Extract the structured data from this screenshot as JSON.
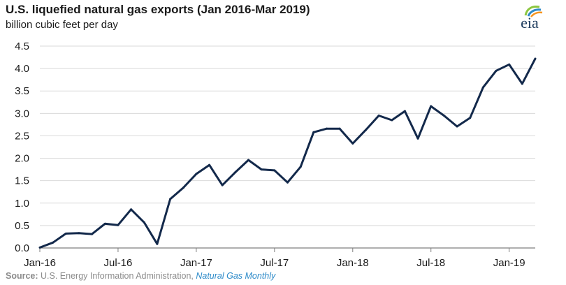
{
  "title": "U.S. liquefied natural gas exports (Jan 2016-Mar 2019)",
  "subtitle": "billion cubic feet per day",
  "logo_text": "eia",
  "source": {
    "label": "Source:",
    "text": " U.S. Energy Information Administration, ",
    "link_text": "Natural Gas Monthly"
  },
  "colors": {
    "line": "#13294b",
    "grid": "#d9d9d9",
    "axis": "#7f7f7f",
    "accent": "#2e8bc9"
  },
  "chart_data": {
    "type": "line",
    "ylim": [
      0,
      4.5
    ],
    "yticks": [
      "0.0",
      "0.5",
      "1.0",
      "1.5",
      "2.0",
      "2.5",
      "3.0",
      "3.5",
      "4.0",
      "4.5"
    ],
    "xticks": [
      {
        "label": "Jan-16",
        "index": 0
      },
      {
        "label": "Jul-16",
        "index": 6
      },
      {
        "label": "Jan-17",
        "index": 12
      },
      {
        "label": "Jul-17",
        "index": 18
      },
      {
        "label": "Jan-18",
        "index": 24
      },
      {
        "label": "Jul-18",
        "index": 30
      },
      {
        "label": "Jan-19",
        "index": 36
      }
    ],
    "grid": true,
    "series": [
      {
        "x": [
          "2016-01",
          "2016-02",
          "2016-03",
          "2016-04",
          "2016-05",
          "2016-06",
          "2016-07",
          "2016-08",
          "2016-09",
          "2016-10",
          "2016-11",
          "2016-12",
          "2017-01",
          "2017-02",
          "2017-03",
          "2017-04",
          "2017-05",
          "2017-06",
          "2017-07",
          "2017-08",
          "2017-09",
          "2017-10",
          "2017-11",
          "2017-12",
          "2018-01",
          "2018-02",
          "2018-03",
          "2018-04",
          "2018-05",
          "2018-06",
          "2018-07",
          "2018-08",
          "2018-09",
          "2018-10",
          "2018-11",
          "2018-12",
          "2019-01",
          "2019-02",
          "2019-03"
        ],
        "values": [
          0.01,
          0.12,
          0.32,
          0.33,
          0.31,
          0.54,
          0.51,
          0.86,
          0.57,
          0.09,
          1.09,
          1.34,
          1.65,
          1.85,
          1.4,
          1.69,
          1.96,
          1.75,
          1.73,
          1.46,
          1.81,
          2.58,
          2.66,
          2.66,
          2.33,
          2.63,
          2.95,
          2.85,
          3.05,
          2.44,
          3.16,
          2.95,
          2.71,
          2.9,
          3.58,
          3.95,
          4.09,
          3.66,
          4.22
        ]
      }
    ]
  }
}
